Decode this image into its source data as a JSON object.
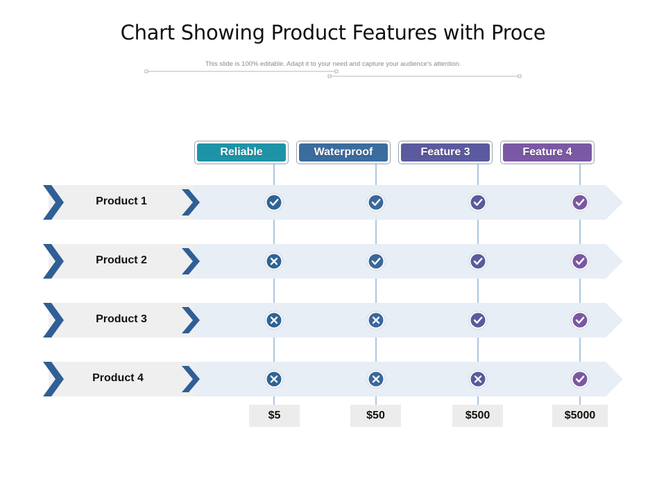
{
  "title": "Chart Showing Product Features with Proce",
  "subtitle": "This slide is 100% editable.  Adapt it to your need and capture your audience's attention.",
  "features": [
    {
      "label": "Reliable",
      "color": "#1e93a8"
    },
    {
      "label": "Waterproof",
      "color": "#3b6c9e"
    },
    {
      "label": "Feature 3",
      "color": "#5b5a9e"
    },
    {
      "label": "Feature 4",
      "color": "#7b58a3"
    }
  ],
  "products": [
    {
      "label": "Product 1",
      "marks": [
        "check",
        "check",
        "check",
        "check"
      ]
    },
    {
      "label": "Product 2",
      "marks": [
        "cross",
        "check",
        "check",
        "check"
      ]
    },
    {
      "label": "Product 3",
      "marks": [
        "cross",
        "cross",
        "check",
        "check"
      ]
    },
    {
      "label": "Product 4",
      "marks": [
        "cross",
        "cross",
        "cross",
        "check"
      ]
    }
  ],
  "prices": [
    "$5",
    "$50",
    "$500",
    "$5000"
  ],
  "colors": {
    "band": "#e8eef6",
    "label_bg": "#efefef",
    "chevron": "#2f5f96",
    "connector": "#5a8fc0",
    "price_bg": "#ececec"
  }
}
